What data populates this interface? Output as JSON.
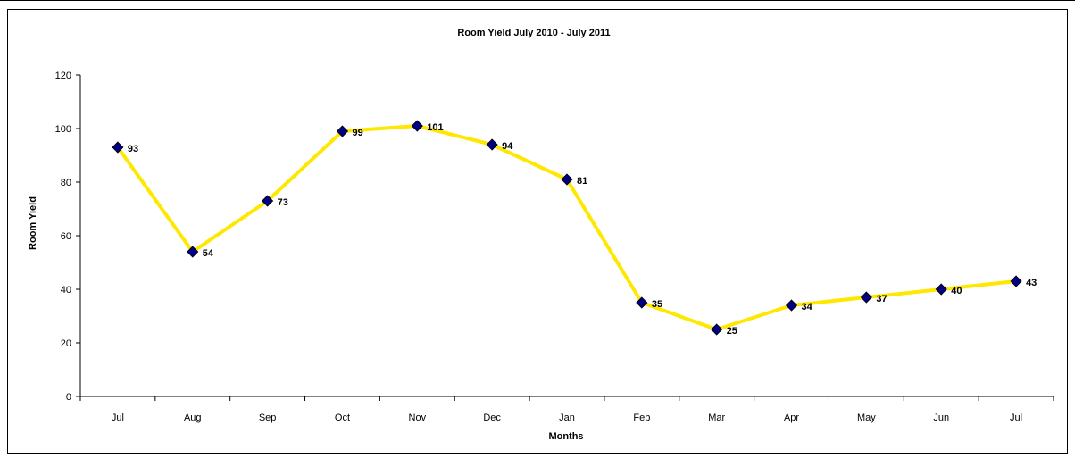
{
  "chart_data": {
    "type": "line",
    "title": "Room Yield July 2010 - July 2011",
    "xlabel": "Months",
    "ylabel": "Room Yield",
    "categories": [
      "Jul",
      "Aug",
      "Sep",
      "Oct",
      "Nov",
      "Dec",
      "Jan",
      "Feb",
      "Mar",
      "Apr",
      "May",
      "Jun",
      "Jul"
    ],
    "series": [
      {
        "values": [
          93,
          54,
          73,
          99,
          101,
          94,
          81,
          35,
          25,
          34,
          37,
          40,
          43
        ]
      }
    ],
    "ylim": [
      0,
      120
    ],
    "yticks": [
      0,
      20,
      40,
      60,
      80,
      100,
      120
    ],
    "grid": false,
    "legend": "none",
    "line_color": "#FFE800",
    "marker_color": "#000080",
    "marker": "diamond"
  }
}
